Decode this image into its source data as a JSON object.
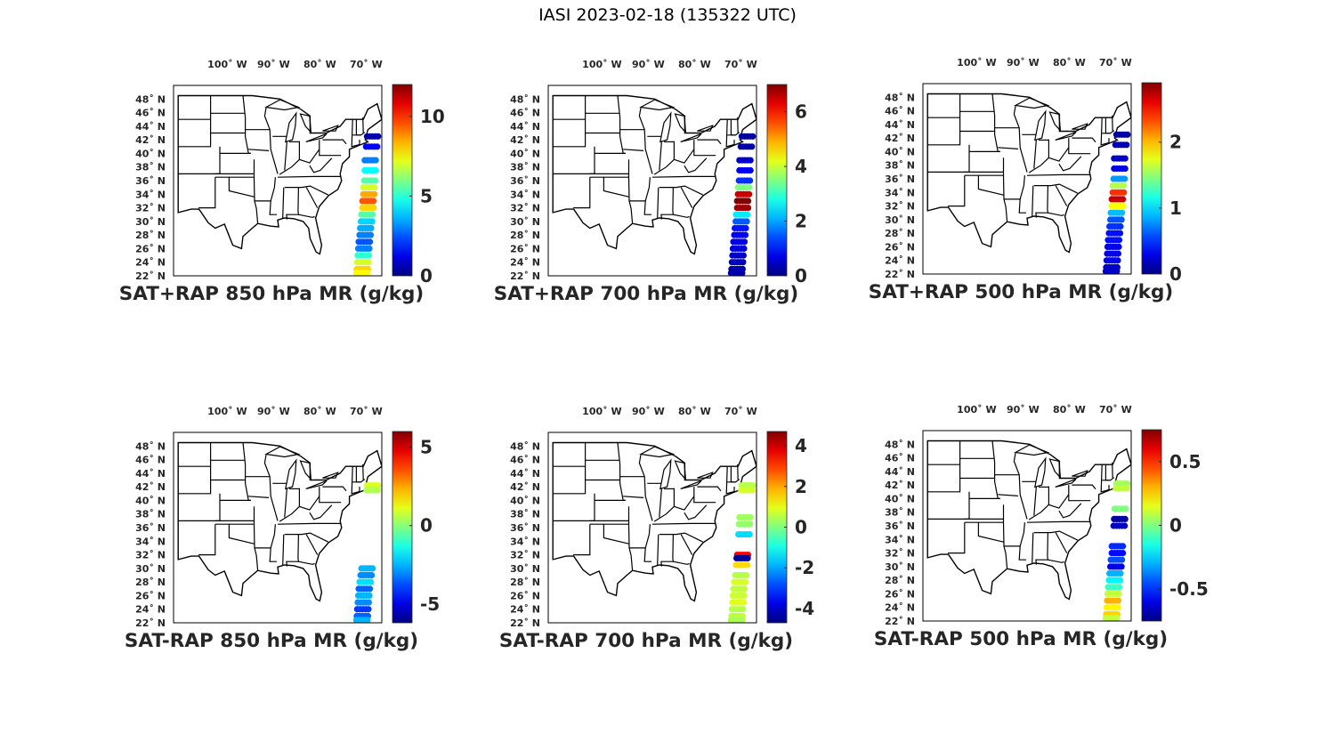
{
  "figure": {
    "title": "IASI 2023-02-18 (135322 UTC)"
  },
  "map": {
    "lon_ticks": [
      -100,
      -90,
      -80,
      -70
    ],
    "lon_labels": [
      "100˚ W",
      "90˚ W",
      "80˚ W",
      "70˚ W"
    ],
    "lat_ticks": [
      22,
      24,
      26,
      28,
      30,
      32,
      34,
      36,
      38,
      40,
      42,
      44,
      46,
      48
    ],
    "lat_labels": [
      "22˚ N",
      "24˚ N",
      "26˚ N",
      "28˚ N",
      "30˚ N",
      "32˚ N",
      "34˚ N",
      "36˚ N",
      "38˚ N",
      "40˚ N",
      "42˚ N",
      "44˚ N",
      "46˚ N",
      "48˚ N"
    ],
    "lon_range": [
      -112,
      -67
    ],
    "lat_range": [
      22,
      50
    ],
    "colormap": "jet",
    "land_outline_color": "#000000"
  },
  "panels": [
    {
      "id": "sum850",
      "title": "SAT+RAP 850 hPa MR (g/kg)",
      "cbar_range": [
        0,
        12
      ],
      "cbar_ticks": [
        0,
        5,
        10
      ],
      "cbar_labels": [
        "0",
        "5",
        "10"
      ]
    },
    {
      "id": "sum700",
      "title": "SAT+RAP 700 hPa MR (g/kg)",
      "cbar_range": [
        0,
        7
      ],
      "cbar_ticks": [
        0,
        2,
        4,
        6
      ],
      "cbar_labels": [
        "0",
        "2",
        "4",
        "6"
      ]
    },
    {
      "id": "sum500",
      "title": "SAT+RAP 500 hPa MR (g/kg)",
      "cbar_range": [
        0,
        2.9
      ],
      "cbar_ticks": [
        0,
        1,
        2
      ],
      "cbar_labels": [
        "0",
        "1",
        "2"
      ]
    },
    {
      "id": "diff850",
      "title": "SAT-RAP 850 hPa MR (g/kg)",
      "cbar_range": [
        -6.2,
        6
      ],
      "cbar_ticks": [
        -5,
        0,
        5
      ],
      "cbar_labels": [
        "-5",
        "0",
        "5"
      ]
    },
    {
      "id": "diff700",
      "title": "SAT-RAP 700 hPa MR (g/kg)",
      "cbar_range": [
        -4.7,
        4.7
      ],
      "cbar_ticks": [
        -4,
        -2,
        0,
        2,
        4
      ],
      "cbar_labels": [
        "-4",
        "-2",
        "0",
        "2",
        "4"
      ]
    },
    {
      "id": "diff500",
      "title": "SAT-RAP 500 hPa MR (g/kg)",
      "cbar_range": [
        -0.75,
        0.75
      ],
      "cbar_ticks": [
        -0.5,
        0,
        0.5
      ],
      "cbar_labels": [
        "-0.5",
        "0",
        "0.5"
      ]
    }
  ],
  "chart_data": [
    {
      "type": "scatter",
      "title": "SAT+RAP 850 hPa MR (g/kg)",
      "xlabel": "",
      "ylabel": "",
      "xlim": [
        -112,
        -67
      ],
      "ylim": [
        22,
        50
      ],
      "clim": [
        0,
        12
      ],
      "swath": [
        {
          "lat": 42.5,
          "lon": -69.0,
          "v": 0.5
        },
        {
          "lat": 41.0,
          "lon": -69.2,
          "v": 1.5
        },
        {
          "lat": 39.0,
          "lon": -69.5,
          "v": 3.0
        },
        {
          "lat": 37.5,
          "lon": -69.5,
          "v": 4.5
        },
        {
          "lat": 36.0,
          "lon": -69.6,
          "v": 5.5
        },
        {
          "lat": 35.0,
          "lon": -69.8,
          "v": 7.0
        },
        {
          "lat": 34.0,
          "lon": -69.8,
          "v": 8.5
        },
        {
          "lat": 33.0,
          "lon": -70.0,
          "v": 9.5
        },
        {
          "lat": 32.0,
          "lon": -70.0,
          "v": 8.0
        },
        {
          "lat": 31.0,
          "lon": -70.2,
          "v": 5.5
        },
        {
          "lat": 30.0,
          "lon": -70.3,
          "v": 4.0
        },
        {
          "lat": 29.0,
          "lon": -70.5,
          "v": 3.5
        },
        {
          "lat": 28.0,
          "lon": -70.6,
          "v": 3.0
        },
        {
          "lat": 27.0,
          "lon": -70.8,
          "v": 2.5
        },
        {
          "lat": 26.0,
          "lon": -70.9,
          "v": 3.0
        },
        {
          "lat": 25.0,
          "lon": -71.0,
          "v": 5.0
        },
        {
          "lat": 24.0,
          "lon": -71.1,
          "v": 7.0
        },
        {
          "lat": 23.0,
          "lon": -71.2,
          "v": 8.0
        },
        {
          "lat": 22.4,
          "lon": -71.3,
          "v": 7.5
        }
      ]
    },
    {
      "type": "scatter",
      "title": "SAT+RAP 700 hPa MR (g/kg)",
      "xlabel": "",
      "ylabel": "",
      "xlim": [
        -112,
        -67
      ],
      "ylim": [
        22,
        50
      ],
      "clim": [
        0,
        7
      ],
      "swath": [
        {
          "lat": 42.5,
          "lon": -69.0,
          "v": 0.2
        },
        {
          "lat": 41.0,
          "lon": -69.2,
          "v": 0.3
        },
        {
          "lat": 39.0,
          "lon": -69.5,
          "v": 0.5
        },
        {
          "lat": 37.5,
          "lon": -69.5,
          "v": 0.8
        },
        {
          "lat": 36.0,
          "lon": -69.6,
          "v": 1.2
        },
        {
          "lat": 35.0,
          "lon": -69.8,
          "v": 3.5
        },
        {
          "lat": 34.0,
          "lon": -69.8,
          "v": 6.5
        },
        {
          "lat": 33.0,
          "lon": -70.0,
          "v": 7.0
        },
        {
          "lat": 32.0,
          "lon": -70.0,
          "v": 6.8
        },
        {
          "lat": 31.0,
          "lon": -70.2,
          "v": 2.5
        },
        {
          "lat": 30.0,
          "lon": -70.3,
          "v": 1.5
        },
        {
          "lat": 29.0,
          "lon": -70.5,
          "v": 1.0
        },
        {
          "lat": 28.0,
          "lon": -70.6,
          "v": 0.8
        },
        {
          "lat": 27.0,
          "lon": -70.8,
          "v": 0.7
        },
        {
          "lat": 26.0,
          "lon": -70.9,
          "v": 0.6
        },
        {
          "lat": 25.0,
          "lon": -71.0,
          "v": 0.5
        },
        {
          "lat": 24.0,
          "lon": -71.1,
          "v": 0.4
        },
        {
          "lat": 23.0,
          "lon": -71.2,
          "v": 0.3
        },
        {
          "lat": 22.4,
          "lon": -71.3,
          "v": 0.3
        }
      ]
    },
    {
      "type": "scatter",
      "title": "SAT+RAP 500 hPa MR (g/kg)",
      "xlabel": "",
      "ylabel": "",
      "xlim": [
        -112,
        -67
      ],
      "ylim": [
        22,
        50
      ],
      "clim": [
        0,
        2.9
      ],
      "swath": [
        {
          "lat": 42.5,
          "lon": -69.0,
          "v": 0.1
        },
        {
          "lat": 41.0,
          "lon": -69.2,
          "v": 0.15
        },
        {
          "lat": 39.0,
          "lon": -69.5,
          "v": 0.2
        },
        {
          "lat": 37.5,
          "lon": -69.5,
          "v": 0.3
        },
        {
          "lat": 36.0,
          "lon": -69.6,
          "v": 0.8
        },
        {
          "lat": 35.0,
          "lon": -69.8,
          "v": 1.6
        },
        {
          "lat": 34.0,
          "lon": -69.8,
          "v": 2.4
        },
        {
          "lat": 33.0,
          "lon": -70.0,
          "v": 2.7
        },
        {
          "lat": 32.0,
          "lon": -70.0,
          "v": 1.8
        },
        {
          "lat": 31.0,
          "lon": -70.2,
          "v": 0.9
        },
        {
          "lat": 30.0,
          "lon": -70.3,
          "v": 0.6
        },
        {
          "lat": 29.0,
          "lon": -70.5,
          "v": 0.5
        },
        {
          "lat": 28.0,
          "lon": -70.6,
          "v": 0.4
        },
        {
          "lat": 27.0,
          "lon": -70.8,
          "v": 0.4
        },
        {
          "lat": 26.0,
          "lon": -70.9,
          "v": 0.3
        },
        {
          "lat": 25.0,
          "lon": -71.0,
          "v": 0.3
        },
        {
          "lat": 24.0,
          "lon": -71.1,
          "v": 0.3
        },
        {
          "lat": 23.0,
          "lon": -71.2,
          "v": 0.2
        },
        {
          "lat": 22.4,
          "lon": -71.3,
          "v": 0.2
        }
      ]
    },
    {
      "type": "scatter",
      "title": "SAT-RAP 850 hPa MR (g/kg)",
      "xlabel": "",
      "ylabel": "",
      "xlim": [
        -112,
        -67
      ],
      "ylim": [
        22,
        50
      ],
      "clim": [
        -6.2,
        6
      ],
      "swath": [
        {
          "lat": 42.2,
          "lon": -69.0,
          "v": 1.0
        },
        {
          "lat": 41.5,
          "lon": -69.1,
          "v": 0.5
        },
        {
          "lat": 30.0,
          "lon": -70.2,
          "v": -2.5
        },
        {
          "lat": 29.0,
          "lon": -70.4,
          "v": -3.0
        },
        {
          "lat": 28.0,
          "lon": -70.6,
          "v": -2.0
        },
        {
          "lat": 27.0,
          "lon": -70.8,
          "v": -3.5
        },
        {
          "lat": 26.0,
          "lon": -70.9,
          "v": -2.5
        },
        {
          "lat": 25.0,
          "lon": -71.0,
          "v": -3.0
        },
        {
          "lat": 24.0,
          "lon": -71.1,
          "v": -4.0
        },
        {
          "lat": 23.0,
          "lon": -71.2,
          "v": -3.5
        },
        {
          "lat": 22.4,
          "lon": -71.3,
          "v": -2.5
        }
      ]
    },
    {
      "type": "scatter",
      "title": "SAT-RAP 700 hPa MR (g/kg)",
      "xlabel": "",
      "ylabel": "",
      "xlim": [
        -112,
        -67
      ],
      "ylim": [
        22,
        50
      ],
      "clim": [
        -4.7,
        4.7
      ],
      "swath": [
        {
          "lat": 42.2,
          "lon": -69.0,
          "v": 0.5
        },
        {
          "lat": 41.5,
          "lon": -69.1,
          "v": 0.8
        },
        {
          "lat": 37.5,
          "lon": -69.5,
          "v": 0.3
        },
        {
          "lat": 36.5,
          "lon": -69.6,
          "v": 0.2
        },
        {
          "lat": 35.0,
          "lon": -69.7,
          "v": -1.5
        },
        {
          "lat": 32.0,
          "lon": -70.0,
          "v": 3.5
        },
        {
          "lat": 31.5,
          "lon": -70.1,
          "v": -4.5
        },
        {
          "lat": 30.5,
          "lon": -70.2,
          "v": 1.5
        },
        {
          "lat": 29.0,
          "lon": -70.4,
          "v": 0.5
        },
        {
          "lat": 28.0,
          "lon": -70.6,
          "v": 0.8
        },
        {
          "lat": 27.0,
          "lon": -70.8,
          "v": 0.6
        },
        {
          "lat": 26.0,
          "lon": -70.9,
          "v": 0.7
        },
        {
          "lat": 25.0,
          "lon": -71.0,
          "v": 0.9
        },
        {
          "lat": 24.0,
          "lon": -71.1,
          "v": 0.5
        },
        {
          "lat": 23.0,
          "lon": -71.2,
          "v": 0.6
        },
        {
          "lat": 22.4,
          "lon": -71.3,
          "v": 0.4
        }
      ]
    },
    {
      "type": "scatter",
      "title": "SAT-RAP 500 hPa MR (g/kg)",
      "xlabel": "",
      "ylabel": "",
      "xlim": [
        -112,
        -67
      ],
      "ylim": [
        22,
        50
      ],
      "clim": [
        -0.75,
        0.75
      ],
      "swath": [
        {
          "lat": 42.2,
          "lon": -69.0,
          "v": 0.05
        },
        {
          "lat": 41.5,
          "lon": -69.1,
          "v": 0.1
        },
        {
          "lat": 38.5,
          "lon": -69.4,
          "v": 0.0
        },
        {
          "lat": 37.0,
          "lon": -69.5,
          "v": -0.7
        },
        {
          "lat": 36.0,
          "lon": -69.6,
          "v": -0.65
        },
        {
          "lat": 33.0,
          "lon": -70.0,
          "v": -0.5
        },
        {
          "lat": 32.0,
          "lon": -70.0,
          "v": -0.55
        },
        {
          "lat": 31.0,
          "lon": -70.2,
          "v": -0.45
        },
        {
          "lat": 30.0,
          "lon": -70.3,
          "v": -0.6
        },
        {
          "lat": 29.0,
          "lon": -70.5,
          "v": -0.3
        },
        {
          "lat": 28.0,
          "lon": -70.6,
          "v": -0.2
        },
        {
          "lat": 27.0,
          "lon": -70.8,
          "v": -0.1
        },
        {
          "lat": 26.0,
          "lon": -70.9,
          "v": 0.1
        },
        {
          "lat": 25.0,
          "lon": -71.0,
          "v": 0.3
        },
        {
          "lat": 24.0,
          "lon": -71.1,
          "v": 0.2
        },
        {
          "lat": 23.0,
          "lon": -71.2,
          "v": 0.25
        },
        {
          "lat": 22.4,
          "lon": -71.3,
          "v": 0.1
        }
      ]
    }
  ]
}
